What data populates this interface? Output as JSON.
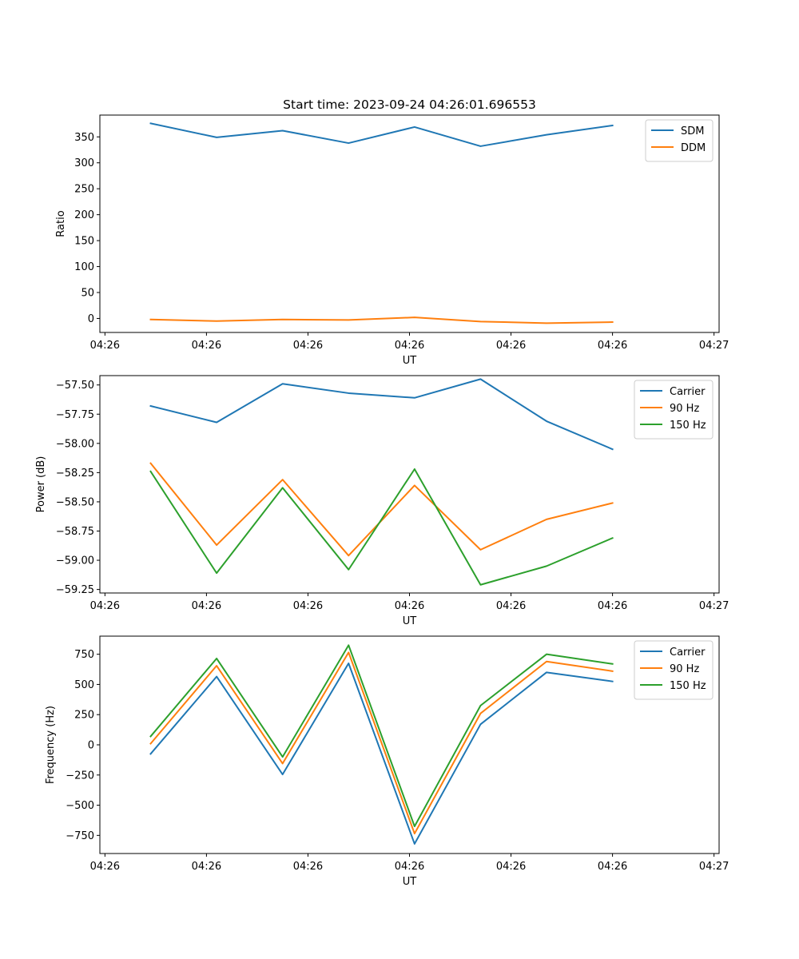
{
  "chart_data": [
    {
      "type": "line",
      "title": "Start time: 2023-09-24 04:26:01.696553",
      "xlabel": "UT",
      "ylabel": "Ratio",
      "x_ticks": [
        "04:26",
        "04:26",
        "04:26",
        "04:26",
        "04:26",
        "04:26",
        "04:26"
      ],
      "x_last_tick": "04:27",
      "xlim": [
        0,
        6.1
      ],
      "x": [
        0.5,
        1.15,
        1.8,
        2.45,
        3.1,
        3.75,
        4.4,
        5.05
      ],
      "ylim": [
        -27,
        392
      ],
      "y_ticks": [
        0,
        50,
        100,
        150,
        200,
        250,
        300,
        350
      ],
      "legend": "top-right",
      "series": [
        {
          "name": "SDM",
          "color": "#1f77b4",
          "values": [
            376,
            349,
            362,
            338,
            369,
            332,
            354,
            372
          ]
        },
        {
          "name": "DDM",
          "color": "#ff7f0e",
          "values": [
            -2,
            -5,
            -2,
            -3,
            2,
            -6,
            -9,
            -7
          ]
        }
      ]
    },
    {
      "type": "line",
      "title": "",
      "xlabel": "UT",
      "ylabel": "Power (dB)",
      "x_ticks": [
        "04:26",
        "04:26",
        "04:26",
        "04:26",
        "04:26",
        "04:26",
        "04:26"
      ],
      "x_last_tick": "04:27",
      "xlim": [
        0,
        6.1
      ],
      "x": [
        0.5,
        1.15,
        1.8,
        2.45,
        3.1,
        3.75,
        4.4,
        5.05
      ],
      "ylim": [
        -59.28,
        -57.42
      ],
      "y_ticks": [
        -59.25,
        -59.0,
        -58.75,
        -58.5,
        -58.25,
        -58.0,
        -57.75,
        -57.5
      ],
      "y_tick_labels": [
        "−59.25",
        "−59.00",
        "−58.75",
        "−58.50",
        "−58.25",
        "−58.00",
        "−57.75",
        "−57.50"
      ],
      "legend": "top-right",
      "series": [
        {
          "name": "Carrier",
          "color": "#1f77b4",
          "values": [
            -57.68,
            -57.82,
            -57.49,
            -57.57,
            -57.61,
            -57.45,
            -57.81,
            -58.05
          ]
        },
        {
          "name": "90 Hz",
          "color": "#ff7f0e",
          "values": [
            -58.17,
            -58.87,
            -58.31,
            -58.96,
            -58.36,
            -58.91,
            -58.65,
            -58.51
          ]
        },
        {
          "name": "150 Hz",
          "color": "#2ca02c",
          "values": [
            -58.24,
            -59.11,
            -58.38,
            -59.08,
            -58.22,
            -59.21,
            -59.05,
            -58.81
          ]
        }
      ]
    },
    {
      "type": "line",
      "title": "",
      "xlabel": "UT",
      "ylabel": "Frequency (Hz)",
      "x_ticks": [
        "04:26",
        "04:26",
        "04:26",
        "04:26",
        "04:26",
        "04:26",
        "04:26"
      ],
      "x_last_tick": "04:27",
      "xlim": [
        0,
        6.1
      ],
      "x": [
        0.5,
        1.15,
        1.8,
        2.45,
        3.1,
        3.75,
        4.4,
        5.05
      ],
      "ylim": [
        -900,
        900
      ],
      "y_ticks": [
        -750,
        -500,
        -250,
        0,
        250,
        500,
        750
      ],
      "y_tick_labels": [
        "−750",
        "−500",
        "−250",
        "0",
        "250",
        "500",
        "750"
      ],
      "legend": "top-right",
      "series": [
        {
          "name": "Carrier",
          "color": "#1f77b4",
          "values": [
            -75,
            565,
            -245,
            675,
            -820,
            170,
            600,
            525
          ]
        },
        {
          "name": "90 Hz",
          "color": "#ff7f0e",
          "values": [
            10,
            655,
            -155,
            765,
            -735,
            260,
            690,
            610
          ]
        },
        {
          "name": "150 Hz",
          "color": "#2ca02c",
          "values": [
            70,
            715,
            -100,
            825,
            -675,
            325,
            750,
            670
          ]
        }
      ]
    }
  ]
}
